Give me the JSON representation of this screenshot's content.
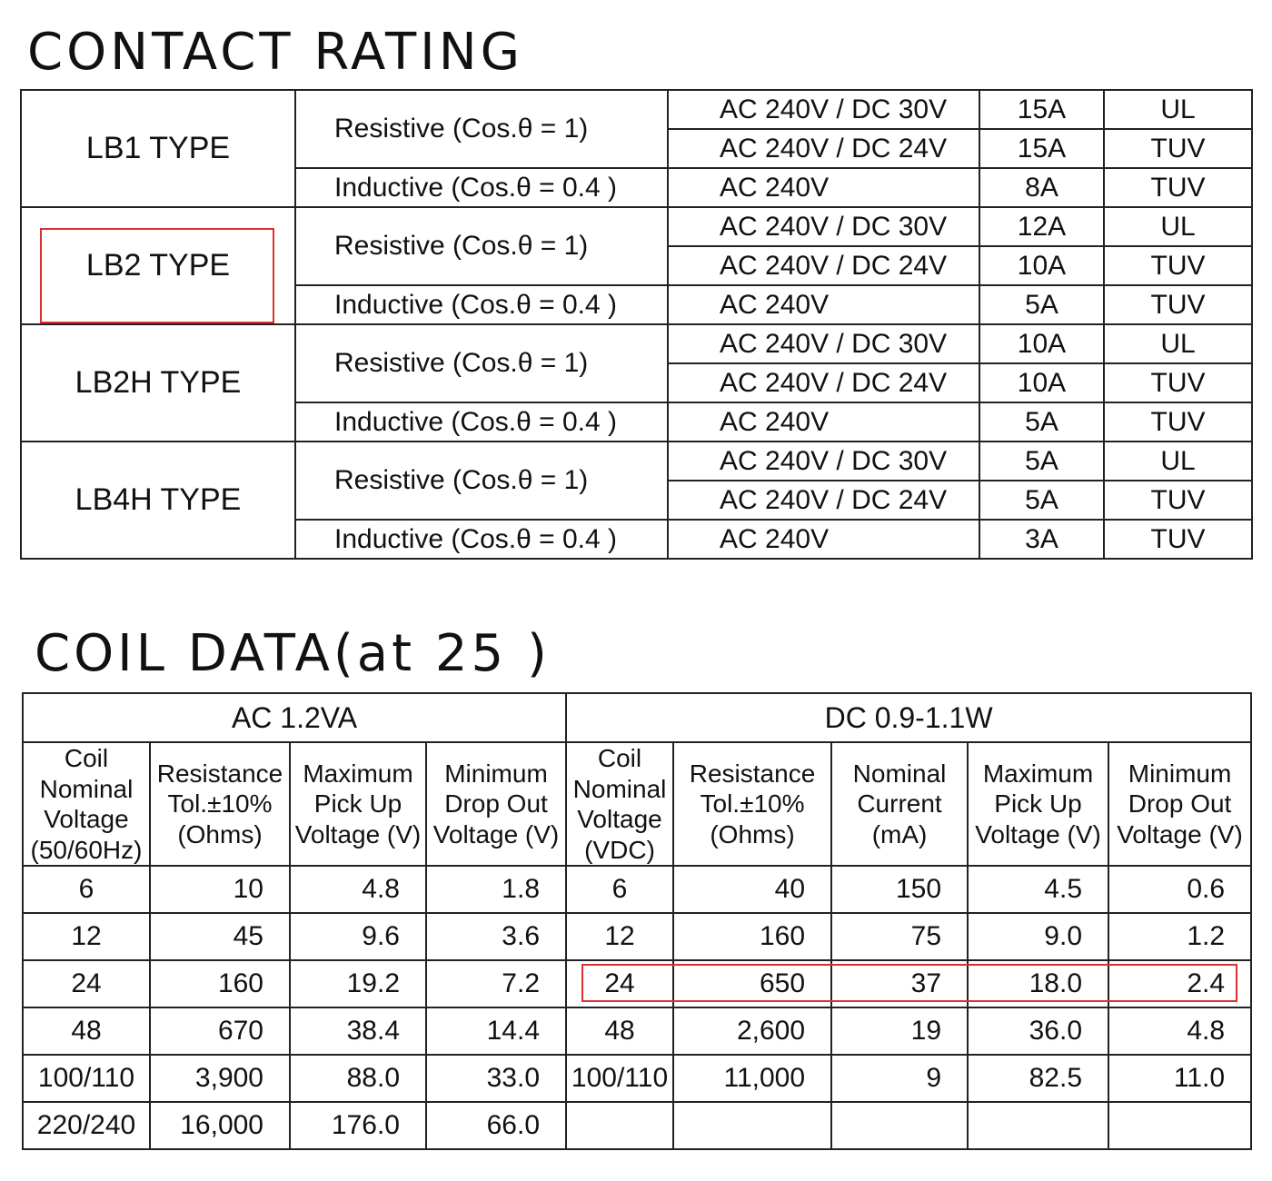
{
  "contact_rating": {
    "title": "CONTACT RATING",
    "groups": [
      {
        "type": "LB1 TYPE",
        "resistive": "Resistive (Cos.θ = 1)",
        "inductive": "Inductive (Cos.θ = 0.4 )",
        "rows": [
          {
            "voltage": "AC 240V / DC 30V",
            "current": "15A",
            "cert": "UL"
          },
          {
            "voltage": "AC 240V / DC 24V",
            "current": "15A",
            "cert": "TUV"
          },
          {
            "voltage": "AC 240V",
            "current": "8A",
            "cert": "TUV"
          }
        ]
      },
      {
        "type": "LB2 TYPE",
        "resistive": "Resistive (Cos.θ = 1)",
        "inductive": "Inductive (Cos.θ = 0.4 )",
        "rows": [
          {
            "voltage": "AC 240V / DC 30V",
            "current": "12A",
            "cert": "UL"
          },
          {
            "voltage": "AC 240V / DC 24V",
            "current": "10A",
            "cert": "TUV"
          },
          {
            "voltage": "AC 240V",
            "current": "5A",
            "cert": "TUV"
          }
        ]
      },
      {
        "type": "LB2H TYPE",
        "resistive": "Resistive (Cos.θ = 1)",
        "inductive": "Inductive (Cos.θ = 0.4 )",
        "rows": [
          {
            "voltage": "AC 240V / DC 30V",
            "current": "10A",
            "cert": "UL"
          },
          {
            "voltage": "AC 240V / DC 24V",
            "current": "10A",
            "cert": "TUV"
          },
          {
            "voltage": "AC 240V",
            "current": "5A",
            "cert": "TUV"
          }
        ]
      },
      {
        "type": "LB4H TYPE",
        "resistive": "Resistive (Cos.θ = 1)",
        "inductive": "Inductive (Cos.θ = 0.4 )",
        "rows": [
          {
            "voltage": "AC 240V / DC 30V",
            "current": "5A",
            "cert": "UL"
          },
          {
            "voltage": "AC 240V / DC 24V",
            "current": "5A",
            "cert": "TUV"
          },
          {
            "voltage": "AC 240V",
            "current": "3A",
            "cert": "TUV"
          }
        ]
      }
    ]
  },
  "coil_data": {
    "title": "COIL DATA(at 25 )",
    "ac_header": "AC  1.2VA",
    "dc_header": "DC  0.9-1.1W",
    "ac_columns": [
      "Coil\nNominal\nVoltage\n(50/60Hz)",
      "Resistance\nTol.±10%\n(Ohms)",
      "Maximum\nPick Up\nVoltage (V)",
      "Minimum\nDrop Out\nVoltage (V)"
    ],
    "dc_columns": [
      "Coil\nNominal\nVoltage\n(VDC)",
      "Resistance\nTol.±10%\n(Ohms)",
      "Nominal\nCurrent\n(mA)",
      "Maximum\nPick Up\nVoltage (V)",
      "Minimum\nDrop Out\nVoltage (V)"
    ],
    "rows": [
      {
        "ac": [
          "6",
          "10",
          "4.8",
          "1.8"
        ],
        "dc": [
          "6",
          "40",
          "150",
          "4.5",
          "0.6"
        ]
      },
      {
        "ac": [
          "12",
          "45",
          "9.6",
          "3.6"
        ],
        "dc": [
          "12",
          "160",
          "75",
          "9.0",
          "1.2"
        ]
      },
      {
        "ac": [
          "24",
          "160",
          "19.2",
          "7.2"
        ],
        "dc": [
          "24",
          "650",
          "37",
          "18.0",
          "2.4"
        ]
      },
      {
        "ac": [
          "48",
          "670",
          "38.4",
          "14.4"
        ],
        "dc": [
          "48",
          "2,600",
          "19",
          "36.0",
          "4.8"
        ]
      },
      {
        "ac": [
          "100/110",
          "3,900",
          "88.0",
          "33.0"
        ],
        "dc": [
          "100/110",
          "11,000",
          "9",
          "82.5",
          "11.0"
        ]
      },
      {
        "ac": [
          "220/240",
          "16,000",
          "176.0",
          "66.0"
        ],
        "dc": [
          "",
          "",
          "",
          "",
          ""
        ]
      }
    ]
  },
  "highlight_color": "#d93030"
}
